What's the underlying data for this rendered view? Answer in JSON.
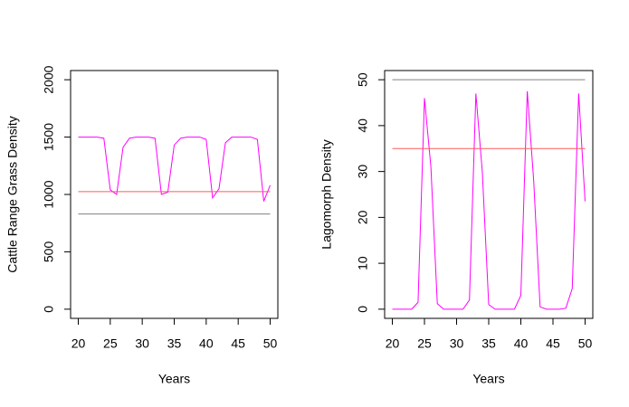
{
  "chart_data": [
    {
      "type": "line",
      "x_label": "Years",
      "y_label": "Cattle Range Grass Density",
      "x": [
        20,
        21,
        22,
        23,
        24,
        25,
        26,
        27,
        28,
        29,
        30,
        31,
        32,
        33,
        34,
        35,
        36,
        37,
        38,
        39,
        40,
        41,
        42,
        43,
        44,
        45,
        46,
        47,
        48,
        49,
        50
      ],
      "xlim": [
        18.8,
        51.2
      ],
      "xticks": [
        20,
        25,
        30,
        35,
        40,
        45,
        50
      ],
      "ylim": [
        -80,
        2080
      ],
      "yticks": [
        0,
        500,
        1000,
        1500,
        2000
      ],
      "series": [
        {
          "color": "#ff00ff",
          "values": [
            1500,
            1500,
            1500,
            1500,
            1490,
            1040,
            1000,
            1410,
            1490,
            1500,
            1500,
            1500,
            1490,
            1000,
            1020,
            1430,
            1490,
            1500,
            1500,
            1500,
            1480,
            970,
            1050,
            1450,
            1500,
            1500,
            1500,
            1500,
            1480,
            940,
            1080
          ]
        },
        {
          "color": "#ff5a5a",
          "values": [
            1025,
            1025,
            1025,
            1025,
            1025,
            1025,
            1025,
            1025,
            1025,
            1025,
            1025,
            1025,
            1025,
            1025,
            1025,
            1025,
            1025,
            1025,
            1025,
            1025,
            1025,
            1025,
            1025,
            1025,
            1025,
            1025,
            1025,
            1025,
            1025,
            1025,
            1025
          ]
        },
        {
          "color": "#808080",
          "values": [
            830,
            830,
            830,
            830,
            830,
            830,
            830,
            830,
            830,
            830,
            830,
            830,
            830,
            830,
            830,
            830,
            830,
            830,
            830,
            830,
            830,
            830,
            830,
            830,
            830,
            830,
            830,
            830,
            830,
            830,
            830
          ]
        }
      ]
    },
    {
      "type": "line",
      "x_label": "Years",
      "y_label": "Lagomorph Density",
      "x": [
        20,
        21,
        22,
        23,
        24,
        25,
        26,
        27,
        28,
        29,
        30,
        31,
        32,
        33,
        34,
        35,
        36,
        37,
        38,
        39,
        40,
        41,
        42,
        43,
        44,
        45,
        46,
        47,
        48,
        49,
        50
      ],
      "xlim": [
        18.8,
        51.2
      ],
      "xticks": [
        20,
        25,
        30,
        35,
        40,
        45,
        50
      ],
      "ylim": [
        -2,
        52
      ],
      "yticks": [
        0,
        10,
        20,
        30,
        40,
        50
      ],
      "series": [
        {
          "color": "#ff00ff",
          "values": [
            0,
            0,
            0,
            0,
            1.5,
            46,
            31,
            1.2,
            0,
            0,
            0,
            0,
            2,
            47,
            30,
            1,
            0,
            0,
            0,
            0,
            3,
            47.5,
            28,
            0.5,
            0,
            0,
            0,
            0.2,
            4.5,
            47,
            23.5
          ]
        },
        {
          "color": "#ff5a5a",
          "values": [
            35,
            35,
            35,
            35,
            35,
            35,
            35,
            35,
            35,
            35,
            35,
            35,
            35,
            35,
            35,
            35,
            35,
            35,
            35,
            35,
            35,
            35,
            35,
            35,
            35,
            35,
            35,
            35,
            35,
            35,
            35
          ]
        },
        {
          "color": "#808080",
          "values": [
            50,
            50,
            50,
            50,
            50,
            50,
            50,
            50,
            50,
            50,
            50,
            50,
            50,
            50,
            50,
            50,
            50,
            50,
            50,
            50,
            50,
            50,
            50,
            50,
            50,
            50,
            50,
            50,
            50,
            50,
            50
          ]
        }
      ]
    }
  ]
}
